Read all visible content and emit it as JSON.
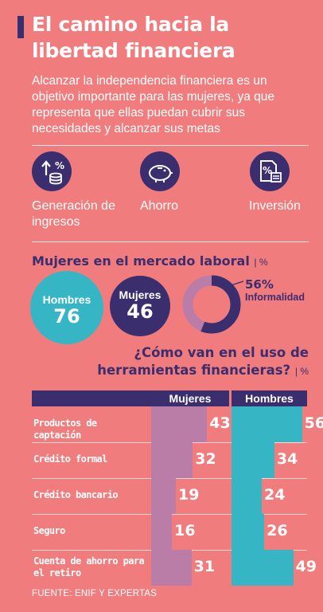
{
  "header": {
    "title": "El camino hacia la libertad financiera",
    "intro": "Alcanzar la independencia financiera es un objetivo importante para las mujeres, ya que representa que ellas puedan cubrir sus necesidades y alcanzar sus metas"
  },
  "icons": [
    {
      "icon": "income-growth-icon",
      "label": "Generación de ingresos"
    },
    {
      "icon": "piggy-bank-icon",
      "label": "Ahorro"
    },
    {
      "icon": "investment-document-icon",
      "label": "Inversión"
    }
  ],
  "colors": {
    "background": "#f17c7e",
    "navy": "#3a2e6e",
    "teal": "#36b6c4",
    "mauve": "#b97da8",
    "white": "#ffffff"
  },
  "labor": {
    "title": "Mujeres en el mercado laboral",
    "unit": "| %",
    "men_label": "Hombres",
    "men_value": "76",
    "women_label": "Mujeres",
    "women_value": "46",
    "informality_pct": "56%",
    "informality_label": "Informalidad"
  },
  "tools": {
    "title": "¿Cómo van en el uso de herramientas financieras?",
    "unit": "| %"
  },
  "chart_data": {
    "type": "bar",
    "title": "¿Cómo van en el uso de herramientas financieras?",
    "unit": "%",
    "categories": [
      "Productos de captación",
      "Crédito formal",
      "Crédito bancario",
      "Seguro",
      "Cuenta de ahorro para el retiro"
    ],
    "series": [
      {
        "name": "Mujeres",
        "values": [
          43,
          32,
          19,
          16,
          31
        ],
        "color": "#b97da8"
      },
      {
        "name": "Hombres",
        "values": [
          56,
          34,
          24,
          26,
          49
        ],
        "color": "#36b6c4"
      }
    ],
    "ylim": [
      0,
      60
    ],
    "grid": true
  },
  "footer": {
    "source": "FUENTE: ENIF Y EXPERTAS"
  }
}
